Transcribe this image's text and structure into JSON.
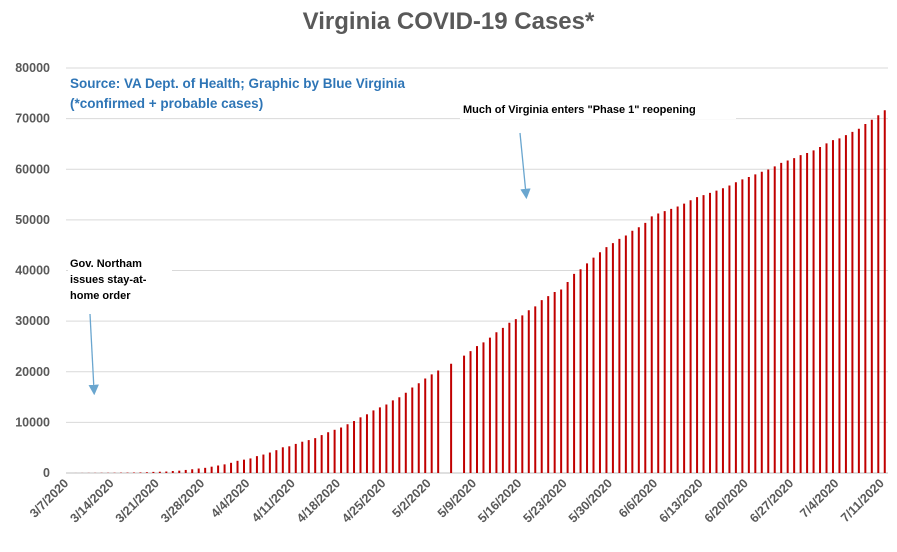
{
  "chart_data": {
    "type": "bar",
    "title": "Virginia COVID-19 Cases*",
    "xlabel": "",
    "ylabel": "",
    "ylim": [
      0,
      80000
    ],
    "y_ticks": [
      0,
      10000,
      20000,
      30000,
      40000,
      50000,
      60000,
      70000,
      80000
    ],
    "grid": true,
    "bar_color": "#c00000",
    "start_date": "3/7/2020",
    "x_tick_labels": [
      "3/7/2020",
      "3/14/2020",
      "3/21/2020",
      "3/28/2020",
      "4/4/2020",
      "4/11/2020",
      "4/18/2020",
      "4/25/2020",
      "5/2/2020",
      "5/9/2020",
      "5/16/2020",
      "5/23/2020",
      "5/30/2020",
      "6/6/2020",
      "6/13/2020",
      "6/20/2020",
      "6/27/2020",
      "7/4/2020",
      "7/11/2020"
    ],
    "values": [
      2,
      8,
      17,
      25,
      30,
      41,
      45,
      51,
      67,
      77,
      99,
      114,
      152,
      219,
      254,
      290,
      391,
      460,
      604,
      739,
      890,
      1020,
      1250,
      1484,
      1706,
      2012,
      2407,
      2637,
      2878,
      3333,
      3645,
      4042,
      4509,
      5077,
      5274,
      5747,
      6182,
      6500,
      6889,
      7491,
      8053,
      8537,
      8990,
      9630,
      10266,
      10998,
      11594,
      12366,
      12970,
      13535,
      14339,
      14961,
      15846,
      16901,
      17731,
      18671,
      19492,
      20256,
      0,
      21570,
      0,
      23196,
      24081,
      25070,
      25800,
      26746,
      27813,
      28672,
      29683,
      30388,
      31140,
      32145,
      32908,
      34137,
      34950,
      35749,
      36244,
      37727,
      39342,
      40249,
      41401,
      42533,
      43611,
      44607,
      45398,
      46239,
      46905,
      47856,
      48532,
      49397,
      50681,
      51251,
      51738,
      52177,
      52647,
      53211,
      53869,
      54506,
      54886,
      55331,
      55775,
      56238,
      56793,
      57443,
      57994,
      58465,
      58994,
      59514,
      59946,
      60570,
      61247,
      61736,
      62189,
      62787,
      63203,
      63735,
      64393,
      65109,
      65748,
      66102,
      66740,
      67375,
      67988,
      68931,
      69782,
      70670,
      71642
    ]
  },
  "annotations": {
    "source": "Source: VA Dept. of Health; Graphic by Blue Virginia",
    "source_sub": "(*confirmed + probable cases)",
    "reopening": "Much of Virginia enters \"Phase 1\" reopening",
    "stay_home": "Gov. Northam\nissues stay-at-\nhome order"
  },
  "colors": {
    "bars": "#c00000",
    "arrow": "#6aa6cf",
    "source_text": "#2e75b6",
    "title_text": "#595959"
  }
}
